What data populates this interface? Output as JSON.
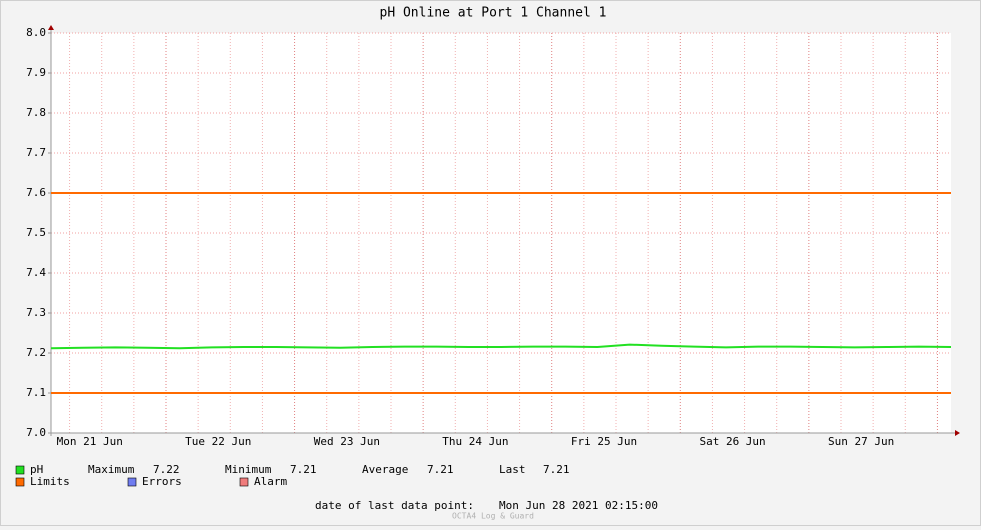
{
  "chart_data": {
    "type": "line",
    "title": "pH Online at Port 1 Channel 1",
    "xtick_labels": [
      "Mon 21 Jun",
      "Tue 22 Jun",
      "Wed 23 Jun",
      "Thu 24 Jun",
      "Fri 25 Jun",
      "Sat 26 Jun",
      "Sun 27 Jun"
    ],
    "series": [
      {
        "name": "pH",
        "color": "#22e022",
        "values": [
          7.212,
          7.213,
          7.214,
          7.213,
          7.212,
          7.214,
          7.215,
          7.215,
          7.214,
          7.213,
          7.215,
          7.216,
          7.216,
          7.215,
          7.215,
          7.216,
          7.216,
          7.215,
          7.221,
          7.218,
          7.216,
          7.214,
          7.216,
          7.216,
          7.215,
          7.214,
          7.215,
          7.216,
          7.215
        ]
      }
    ],
    "limits": {
      "name": "Limits",
      "color": "#ff6a00",
      "values": [
        7.1,
        7.6
      ]
    },
    "legend_extra": [
      {
        "name": "Errors",
        "color": "#6f7cf0"
      },
      {
        "name": "Alarm",
        "color": "#f07c7c"
      }
    ],
    "stats": [
      {
        "label": "Maximum",
        "value": 7.22
      },
      {
        "label": "Minimum",
        "value": 7.21
      },
      {
        "label": "Average",
        "value": 7.21
      },
      {
        "label": "Last",
        "value": 7.21
      }
    ],
    "ylim": [
      7.0,
      8.0
    ],
    "yticks": [
      {
        "value": 7.0,
        "label": "7.0"
      },
      7.1,
      7.2,
      7.3,
      7.4,
      7.5,
      7.6,
      7.7,
      7.8,
      7.9,
      {
        "value": 8.0,
        "label": "8.0"
      }
    ],
    "grid": true,
    "last_point_label": "date of last data point:",
    "last_point": "Mon Jun 28 2021 02:15:00",
    "watermark": "OCTA4 Log & Guard"
  }
}
